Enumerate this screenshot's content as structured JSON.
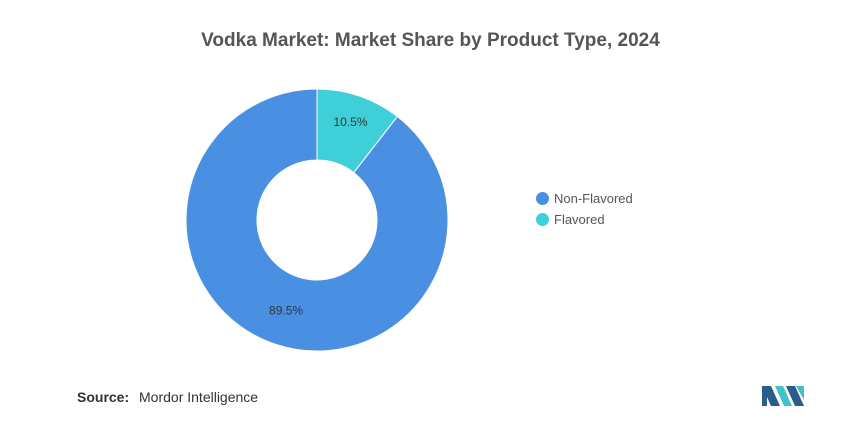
{
  "chart_data": {
    "type": "pie",
    "title": "Vodka Market: Market Share by Product Type, 2024",
    "categories": [
      "Non-Flavored",
      "Flavored"
    ],
    "values": [
      89.5,
      10.5
    ],
    "data_labels": [
      "89.5%",
      "10.5%"
    ],
    "colors": [
      "#4a90e2",
      "#3fcfd9"
    ],
    "legend_position": "right"
  },
  "source": {
    "label": "Source:",
    "text": "Mordor Intelligence"
  },
  "logo": {
    "icon": "mordor-intelligence-logo",
    "colors": [
      "#2b5d8c",
      "#3fc3c8"
    ]
  }
}
